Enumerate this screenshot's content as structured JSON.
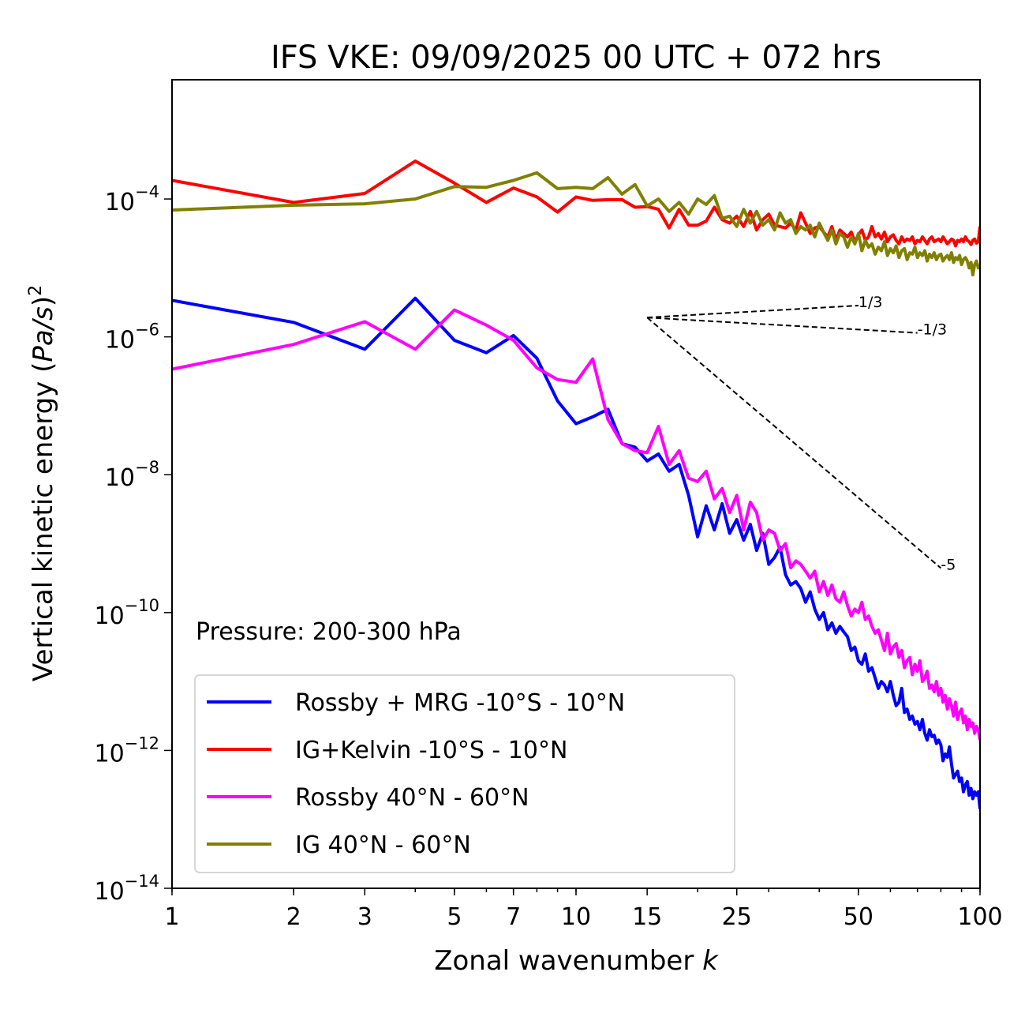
{
  "chart_data": {
    "type": "line",
    "title": "IFS VKE: 09/09/2025 00 UTC + 072 hrs",
    "xlabel_prefix": "Zonal wavenumber ",
    "xlabel_var": "k",
    "ylabel_prefix": "Vertical kinetic energy (",
    "ylabel_var": "Pa/s",
    "ylabel_suffix": ")",
    "ylabel_exp": "2",
    "xscale": "log",
    "yscale": "log",
    "xlim": [
      1,
      100
    ],
    "ylim_log10": [
      -14,
      -2.27
    ],
    "grid": false,
    "x_ticks": [
      {
        "value": 1,
        "label": "1"
      },
      {
        "value": 2,
        "label": "2"
      },
      {
        "value": 3,
        "label": "3"
      },
      {
        "value": 5,
        "label": "5"
      },
      {
        "value": 7,
        "label": "7"
      },
      {
        "value": 10,
        "label": "10"
      },
      {
        "value": 15,
        "label": "15"
      },
      {
        "value": 25,
        "label": "25"
      },
      {
        "value": 50,
        "label": "50"
      },
      {
        "value": 100,
        "label": "100"
      }
    ],
    "y_ticks": [
      {
        "log10": -4,
        "base": "10",
        "exp": "−4"
      },
      {
        "log10": -6,
        "base": "10",
        "exp": "−6"
      },
      {
        "log10": -8,
        "base": "10",
        "exp": "−8"
      },
      {
        "log10": -10,
        "base": "10",
        "exp": "−10"
      },
      {
        "log10": -12,
        "base": "10",
        "exp": "−12"
      },
      {
        "log10": -14,
        "base": "10",
        "exp": "−14"
      }
    ],
    "annotation": "Pressure: 200-300 hPa",
    "legend_position": "lower-left",
    "reference_slopes": [
      {
        "label": "1/3",
        "slope": 0.3333,
        "k_start": 15,
        "k_end": 50,
        "log10_start": -5.72
      },
      {
        "label": "-1/3",
        "slope": -0.3333,
        "k_start": 15,
        "k_end": 70,
        "log10_start": -5.72
      },
      {
        "label": "-5",
        "slope": -5,
        "k_start": 15,
        "k_end": 80,
        "log10_start": -5.72
      }
    ],
    "series": [
      {
        "name": "Rossby + MRG -10°S - 10°N",
        "color": "#0000ff",
        "k_start": 1,
        "log10_values": [
          -5.47,
          -5.79,
          -6.18,
          -5.44,
          -6.05,
          -6.23,
          -5.98,
          -6.31,
          -6.93,
          -7.26,
          -7.16,
          -7.05,
          -7.55,
          -7.6,
          -7.8,
          -7.7,
          -7.95,
          -7.85,
          -8.3,
          -8.9,
          -8.45,
          -8.8,
          -8.42,
          -8.85,
          -8.65,
          -8.95,
          -8.72,
          -9.1,
          -8.85,
          -9.3,
          -9.2,
          -9.05,
          -9.45,
          -9.6,
          -9.55,
          -9.65,
          -9.85,
          -9.7,
          -9.95,
          -10.1,
          -10.0,
          -10.25,
          -10.15,
          -10.3,
          -10.2,
          -10.28,
          -10.35,
          -10.55,
          -10.5,
          -10.7,
          -10.75,
          -10.6,
          -10.85,
          -10.8,
          -10.95,
          -11.1,
          -11.0,
          -11.05,
          -11.15,
          -11.0,
          -11.2,
          -11.35,
          -11.3,
          -11.1,
          -11.45,
          -11.4,
          -11.55,
          -11.5,
          -11.62,
          -11.58,
          -11.7,
          -11.55,
          -11.75,
          -11.85,
          -11.7,
          -11.8,
          -11.78,
          -11.9,
          -11.85,
          -11.92,
          -12.15,
          -12.05,
          -12.1,
          -11.95,
          -12.2,
          -12.4,
          -12.35,
          -12.3,
          -12.45,
          -12.4,
          -12.6,
          -12.5,
          -12.45,
          -12.65,
          -12.55,
          -12.7,
          -12.6,
          -12.65,
          -12.6,
          -12.85
        ]
      },
      {
        "name": "IG+Kelvin -10°S - 10°N",
        "color": "#ff0000",
        "k_start": 1,
        "log10_values": [
          -3.73,
          -4.05,
          -3.92,
          -3.45,
          -3.77,
          -4.05,
          -3.84,
          -3.97,
          -4.19,
          -3.97,
          -4.02,
          -4.01,
          -4.01,
          -4.12,
          -4.11,
          -4.15,
          -4.42,
          -4.15,
          -4.38,
          -4.38,
          -4.32,
          -4.12,
          -4.3,
          -4.35,
          -4.25,
          -4.4,
          -4.18,
          -4.45,
          -4.3,
          -4.22,
          -4.38,
          -4.4,
          -4.42,
          -4.35,
          -4.45,
          -4.2,
          -4.35,
          -4.5,
          -4.42,
          -4.4,
          -4.48,
          -4.55,
          -4.4,
          -4.6,
          -4.45,
          -4.5,
          -4.55,
          -4.48,
          -4.62,
          -4.52,
          -4.45,
          -4.6,
          -4.55,
          -4.4,
          -4.55,
          -4.5,
          -4.58,
          -4.48,
          -4.62,
          -4.55,
          -4.52,
          -4.6,
          -4.65,
          -4.55,
          -4.62,
          -4.58,
          -4.6,
          -4.55,
          -4.65,
          -4.6,
          -4.62,
          -4.55,
          -4.6,
          -4.65,
          -4.58,
          -4.55,
          -4.62,
          -4.6,
          -4.58,
          -4.62,
          -4.55,
          -4.6,
          -4.65,
          -4.62,
          -4.58,
          -4.6,
          -4.68,
          -4.6,
          -4.62,
          -4.58,
          -4.62,
          -4.55,
          -4.6,
          -4.62,
          -4.66,
          -4.6,
          -4.58,
          -4.64,
          -4.62,
          -4.4
        ]
      },
      {
        "name": "Rossby 40°N - 60°N",
        "color": "#ff00ff",
        "k_start": 1,
        "log10_values": [
          -6.47,
          -6.11,
          -5.78,
          -6.18,
          -5.61,
          -5.83,
          -6.05,
          -6.45,
          -6.62,
          -6.66,
          -6.32,
          -7.2,
          -7.55,
          -7.65,
          -7.68,
          -7.3,
          -7.85,
          -7.65,
          -8.05,
          -8.1,
          -7.95,
          -8.35,
          -8.2,
          -8.55,
          -8.3,
          -8.8,
          -8.4,
          -8.55,
          -8.95,
          -8.8,
          -8.85,
          -9.1,
          -9.0,
          -9.35,
          -9.25,
          -9.3,
          -9.4,
          -9.5,
          -9.4,
          -9.7,
          -9.55,
          -9.75,
          -9.6,
          -9.8,
          -9.85,
          -9.7,
          -9.9,
          -10.05,
          -9.95,
          -10.0,
          -9.85,
          -10.1,
          -10.05,
          -10.2,
          -10.3,
          -10.25,
          -10.4,
          -10.55,
          -10.3,
          -10.6,
          -10.5,
          -10.45,
          -10.65,
          -10.55,
          -10.8,
          -10.7,
          -10.65,
          -10.9,
          -10.75,
          -10.85,
          -10.7,
          -11.0,
          -10.95,
          -10.85,
          -11.1,
          -11.05,
          -11.15,
          -11.0,
          -11.2,
          -11.1,
          -11.3,
          -11.2,
          -11.4,
          -11.25,
          -11.35,
          -11.5,
          -11.3,
          -11.55,
          -11.45,
          -11.4,
          -11.6,
          -11.5,
          -11.7,
          -11.55,
          -11.65,
          -11.6,
          -11.75,
          -11.65,
          -11.7,
          -11.85
        ]
      },
      {
        "name": "IG 40°N - 60°N",
        "color": "#808000",
        "k_start": 1,
        "log10_values": [
          -4.16,
          -4.09,
          -4.07,
          -4.0,
          -3.82,
          -3.83,
          -3.73,
          -3.62,
          -3.85,
          -3.83,
          -3.85,
          -3.69,
          -3.93,
          -3.79,
          -4.1,
          -4.0,
          -4.18,
          -4.05,
          -4.22,
          -4.0,
          -4.08,
          -3.95,
          -4.28,
          -4.25,
          -4.4,
          -4.15,
          -4.35,
          -4.18,
          -4.38,
          -4.3,
          -4.45,
          -4.2,
          -4.35,
          -4.3,
          -4.5,
          -4.4,
          -4.45,
          -4.38,
          -4.55,
          -4.35,
          -4.48,
          -4.6,
          -4.45,
          -4.65,
          -4.5,
          -4.55,
          -4.7,
          -4.55,
          -4.65,
          -4.5,
          -4.75,
          -4.6,
          -4.7,
          -4.65,
          -4.8,
          -4.7,
          -4.75,
          -4.62,
          -4.82,
          -4.72,
          -4.78,
          -4.68,
          -4.85,
          -4.75,
          -4.72,
          -4.88,
          -4.78,
          -4.8,
          -4.7,
          -4.85,
          -4.78,
          -4.82,
          -4.75,
          -4.9,
          -4.8,
          -4.85,
          -4.78,
          -4.88,
          -4.82,
          -4.8,
          -4.9,
          -4.85,
          -4.82,
          -4.88,
          -4.78,
          -4.92,
          -4.85,
          -4.88,
          -4.82,
          -4.95,
          -4.88,
          -4.85,
          -4.9,
          -5.0,
          -4.92,
          -5.1,
          -4.95,
          -4.9,
          -5.0,
          -4.95
        ]
      }
    ]
  }
}
